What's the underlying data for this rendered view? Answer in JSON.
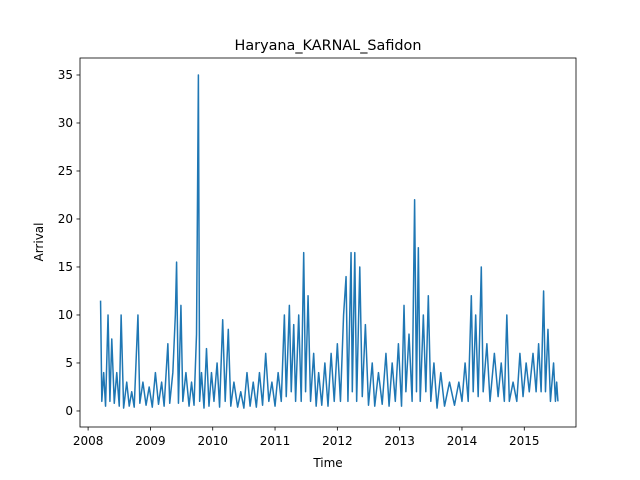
{
  "chart_data": {
    "type": "line",
    "title": "Haryana_KARNAL_Safidon",
    "xlabel": "Time",
    "ylabel": "Arrival",
    "x": [
      2008.2,
      2008.22,
      2008.25,
      2008.28,
      2008.32,
      2008.35,
      2008.38,
      2008.42,
      2008.46,
      2008.5,
      2008.53,
      2008.57,
      2008.62,
      2008.66,
      2008.7,
      2008.74,
      2008.8,
      2008.83,
      2008.88,
      2008.93,
      2008.98,
      2009.03,
      2009.08,
      2009.13,
      2009.18,
      2009.22,
      2009.28,
      2009.31,
      2009.36,
      2009.4,
      2009.42,
      2009.45,
      2009.49,
      2009.52,
      2009.57,
      2009.62,
      2009.66,
      2009.7,
      2009.74,
      2009.76,
      2009.77,
      2009.79,
      2009.82,
      2009.86,
      2009.9,
      2009.94,
      2009.98,
      2010.02,
      2010.07,
      2010.11,
      2010.16,
      2010.2,
      2010.25,
      2010.29,
      2010.34,
      2010.4,
      2010.45,
      2010.5,
      2010.55,
      2010.6,
      2010.65,
      2010.7,
      2010.75,
      2010.8,
      2010.85,
      2010.9,
      2010.95,
      2011.0,
      2011.05,
      2011.1,
      2011.15,
      2011.18,
      2011.23,
      2011.26,
      2011.3,
      2011.33,
      2011.38,
      2011.42,
      2011.46,
      2011.49,
      2011.53,
      2011.57,
      2011.62,
      2011.66,
      2011.7,
      2011.75,
      2011.8,
      2011.85,
      2011.9,
      2011.95,
      2012.0,
      2012.05,
      2012.1,
      2012.14,
      2012.17,
      2012.22,
      2012.24,
      2012.28,
      2012.31,
      2012.36,
      2012.4,
      2012.45,
      2012.5,
      2012.56,
      2012.6,
      2012.66,
      2012.72,
      2012.78,
      2012.83,
      2012.88,
      2012.93,
      2012.98,
      2013.03,
      2013.07,
      2013.1,
      2013.15,
      2013.2,
      2013.24,
      2013.27,
      2013.3,
      2013.33,
      2013.38,
      2013.42,
      2013.46,
      2013.5,
      2013.55,
      2013.6,
      2013.66,
      2013.72,
      2013.8,
      2013.88,
      2013.95,
      2014.0,
      2014.05,
      2014.1,
      2014.15,
      2014.18,
      2014.22,
      2014.26,
      2014.31,
      2014.34,
      2014.4,
      2014.45,
      2014.52,
      2014.58,
      2014.63,
      2014.68,
      2014.72,
      2014.76,
      2014.82,
      2014.88,
      2014.93,
      2014.98,
      2015.03,
      2015.08,
      2015.14,
      2015.19,
      2015.23,
      2015.27,
      2015.31,
      2015.34,
      2015.38,
      2015.42,
      2015.47,
      2015.5,
      2015.52,
      2015.54
    ],
    "values": [
      11.5,
      1,
      4,
      0.5,
      10,
      1,
      7.5,
      0.8,
      4,
      0.5,
      10,
      0.3,
      3,
      0.5,
      2,
      0.4,
      10,
      0.8,
      3,
      0.6,
      2.5,
      0.4,
      4,
      0.7,
      3,
      0.5,
      7,
      0.8,
      4,
      10,
      15.5,
      0.8,
      11,
      1,
      4,
      0.5,
      3,
      0.6,
      8,
      26,
      35,
      1,
      4,
      0.3,
      6.5,
      0.5,
      4,
      1,
      5,
      0.4,
      9.5,
      1,
      8.5,
      0.5,
      3,
      0.4,
      2,
      0.3,
      4,
      0.5,
      3,
      0.4,
      4,
      0.6,
      6,
      1,
      3,
      0.5,
      4,
      1,
      10,
      1.5,
      11,
      2,
      9,
      1,
      10,
      1,
      16.5,
      2,
      12,
      1,
      6,
      0.5,
      4,
      0.6,
      5,
      0.5,
      6,
      1,
      7,
      1,
      10,
      14,
      1,
      16.5,
      2,
      16.5,
      1,
      15,
      1.5,
      9,
      0.6,
      5,
      0.5,
      4,
      0.7,
      6,
      0.5,
      5,
      1,
      7,
      0.5,
      11,
      2,
      8,
      1,
      22,
      2,
      17,
      1,
      10,
      2,
      12,
      1,
      5,
      0.3,
      4,
      0.5,
      3,
      0.6,
      3,
      1,
      5,
      1,
      12,
      2,
      10,
      1.5,
      15,
      2,
      7,
      1,
      6,
      1.5,
      5,
      1,
      10,
      1,
      3,
      1,
      6,
      1.5,
      5,
      2,
      6,
      2,
      7,
      2,
      12.5,
      2,
      8.5,
      1,
      5,
      1,
      3,
      1
    ],
    "color": "#1f77b4",
    "xlim": [
      2007.87,
      2015.83
    ],
    "xticks": [
      2008,
      2009,
      2010,
      2011,
      2012,
      2013,
      2014,
      2015
    ],
    "ylim": [
      -1.67,
      36.77
    ],
    "yticks": [
      0,
      5,
      10,
      15,
      20,
      25,
      30,
      35
    ]
  }
}
